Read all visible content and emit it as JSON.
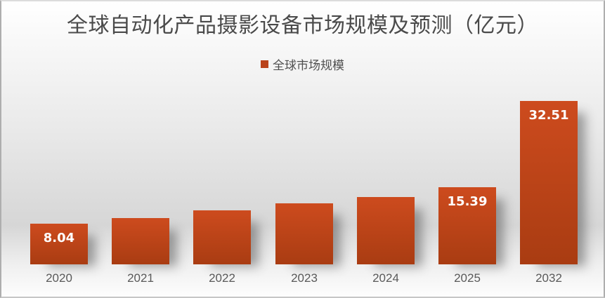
{
  "header": {
    "title": "全球自动化产品摄影设备市场规模及预测（亿元）",
    "title_color": "#4A4A4A"
  },
  "legend": {
    "label": "全球市场规模",
    "swatch_color": "#B9431B",
    "text_color": "#4F4F4F"
  },
  "chart_data": {
    "type": "bar",
    "title": "全球自动化产品摄影设备市场规模及预测（亿元）",
    "unit": "亿元",
    "xlabel": "",
    "ylabel": "",
    "categories": [
      "2020",
      "2021",
      "2022",
      "2023",
      "2024",
      "2025",
      "2032"
    ],
    "series": [
      {
        "name": "全球市场规模",
        "values": [
          8.04,
          9.2,
          10.7,
          12.1,
          13.4,
          15.39,
          32.51
        ]
      }
    ],
    "value_labels": [
      "8.04",
      "",
      "",
      "",
      "",
      "15.39",
      "32.51"
    ],
    "ylim": [
      0,
      35
    ],
    "grid": false,
    "axes_visible": false,
    "legend_position": "top-center",
    "bar_color_top": "#CD4B1E",
    "bar_color_bottom": "#A93C12",
    "value_label_color": "#FFFFFF",
    "axis_tick_color": "#595959"
  }
}
